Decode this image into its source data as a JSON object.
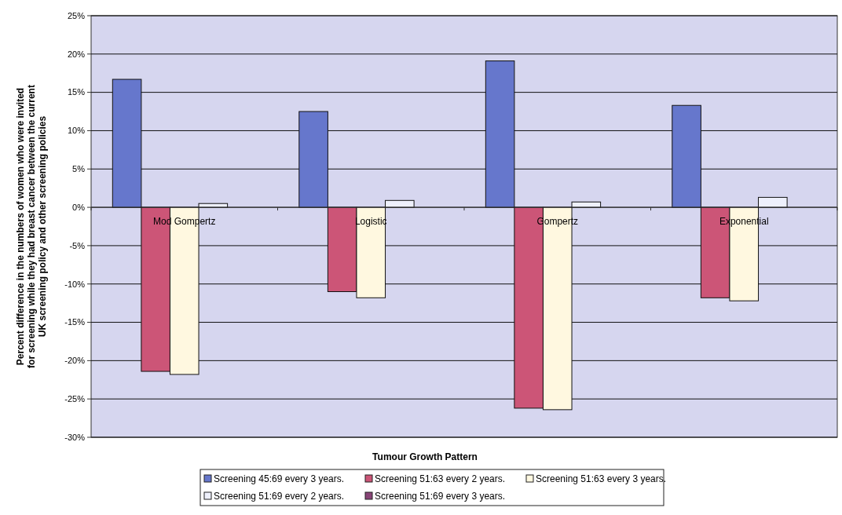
{
  "chart_data": {
    "type": "bar",
    "xlabel": "Tumour Growth Pattern",
    "ylabel": "Percent difference in the numbers of women who were invited for screening while they had breast cancer between the current UK screening policy and other screening policies",
    "categories": [
      "Mod Gompertz",
      "Logistic",
      "Gompertz",
      "Exponential"
    ],
    "series": [
      {
        "name": "Screening 45:69 every 3 years.",
        "color": "#6677cc",
        "values": [
          16.7,
          12.5,
          19.1,
          13.3
        ]
      },
      {
        "name": "Screening 51:63 every 2 years.",
        "color": "#cc5577",
        "values": [
          -21.4,
          -11.0,
          -26.2,
          -11.8
        ]
      },
      {
        "name": "Screening 51:63 every 3 years.",
        "color": "#fff8e0",
        "values": [
          -21.8,
          -11.8,
          -26.4,
          -12.2
        ]
      },
      {
        "name": "Screening 51:69 every 2 years.",
        "color": "#eef0fc",
        "values": [
          0.5,
          0.9,
          0.7,
          1.3
        ]
      },
      {
        "name": "Screening 51:69 every 3 years.",
        "color": "#884477",
        "values": [
          0,
          0,
          0,
          0
        ]
      }
    ],
    "ylim": [
      -30,
      25
    ],
    "yticks": [
      {
        "value": -30,
        "label": "-30%"
      },
      {
        "value": -25,
        "label": "-25%"
      },
      {
        "value": -20,
        "label": "-20%"
      },
      {
        "value": -15,
        "label": "-15%"
      },
      {
        "value": -10,
        "label": "-10%"
      },
      {
        "value": -5,
        "label": "-5%"
      },
      {
        "value": 0,
        "label": "0%"
      },
      {
        "value": 5,
        "label": "5%"
      },
      {
        "value": 10,
        "label": "10%"
      },
      {
        "value": 15,
        "label": "15%"
      },
      {
        "value": 20,
        "label": "20%"
      },
      {
        "value": 25,
        "label": "25%"
      }
    ],
    "grid": "y",
    "legend": "bottom"
  }
}
